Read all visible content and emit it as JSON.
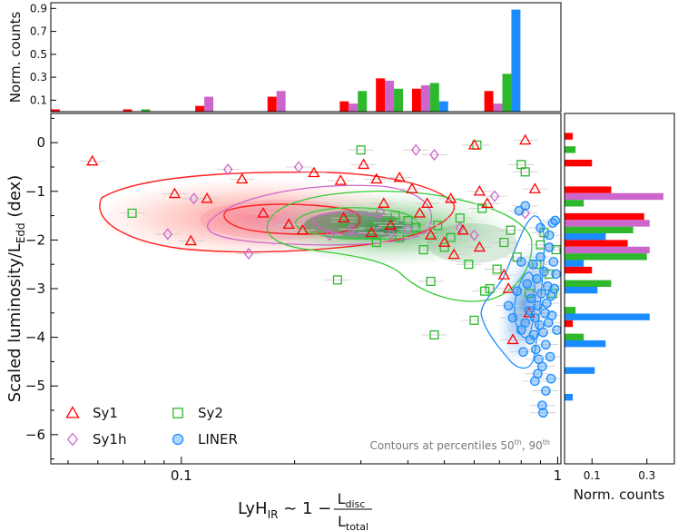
{
  "chart_data": {
    "type": "scatter",
    "xscale": "log",
    "xlim": [
      0.045,
      1.02
    ],
    "ylim": [
      -6.6,
      0.6
    ],
    "x_ticks": [
      0.1,
      1
    ],
    "x_tick_labels": [
      "0.1",
      "1"
    ],
    "y_ticks": [
      0,
      -1,
      -2,
      -3,
      -4,
      -5,
      -6
    ],
    "y_tick_labels": [
      "0",
      "−1",
      "−2",
      "−3",
      "−4",
      "−5",
      "−6"
    ],
    "xlabel": {
      "main": "LyH",
      "sub": "IR",
      "mid": " ~ 1 − ",
      "num_main": "L",
      "num_sub": "disc",
      "den_main": "L",
      "den_sub": "total"
    },
    "ylabel": {
      "main": "Scaled luminosity/L",
      "sub": "Edd",
      "tail": " (dex)"
    },
    "annotation": {
      "prefix": "Contours at percentiles 50",
      "sup1": "th",
      "mid": ", 90",
      "sup2": "th"
    },
    "colors": {
      "Sy1": "#ff0000",
      "Sy1h": "#cc66cc",
      "Sy2": "#2db82d",
      "LINER": "#1a8cff"
    },
    "series": [
      {
        "name": "Sy1",
        "marker": "triangle",
        "points": [
          [
            0.058,
            -0.38
          ],
          [
            0.096,
            -1.05
          ],
          [
            0.106,
            -2.02
          ],
          [
            0.117,
            -1.15
          ],
          [
            0.145,
            -0.75
          ],
          [
            0.165,
            -1.45
          ],
          [
            0.193,
            -1.68
          ],
          [
            0.225,
            -0.62
          ],
          [
            0.265,
            -0.78
          ],
          [
            0.305,
            -0.45
          ],
          [
            0.33,
            -0.75
          ],
          [
            0.345,
            -1.25
          ],
          [
            0.38,
            -0.72
          ],
          [
            0.41,
            -0.95
          ],
          [
            0.43,
            -1.45
          ],
          [
            0.45,
            -1.25
          ],
          [
            0.46,
            -1.9
          ],
          [
            0.5,
            -2.05
          ],
          [
            0.52,
            -1.15
          ],
          [
            0.53,
            -2.3
          ],
          [
            0.56,
            -1.8
          ],
          [
            0.6,
            -0.05
          ],
          [
            0.62,
            -1.0
          ],
          [
            0.65,
            -1.25
          ],
          [
            0.72,
            -2.72
          ],
          [
            0.74,
            -3.0
          ],
          [
            0.76,
            -4.05
          ],
          [
            0.82,
            0.05
          ],
          [
            0.84,
            -3.5
          ],
          [
            0.87,
            -0.95
          ],
          [
            0.62,
            -2.15
          ],
          [
            0.36,
            -1.7
          ],
          [
            0.32,
            -1.85
          ],
          [
            0.27,
            -1.55
          ],
          [
            0.21,
            -1.8
          ]
        ]
      },
      {
        "name": "Sy1h",
        "marker": "diamond",
        "points": [
          [
            0.092,
            -1.88
          ],
          [
            0.108,
            -1.15
          ],
          [
            0.133,
            -0.55
          ],
          [
            0.151,
            -2.28
          ],
          [
            0.205,
            -0.5
          ],
          [
            0.248,
            -1.9
          ],
          [
            0.283,
            -1.78
          ],
          [
            0.338,
            -1.42
          ],
          [
            0.36,
            -1.88
          ],
          [
            0.4,
            -1.78
          ],
          [
            0.42,
            -0.15
          ],
          [
            0.47,
            -0.25
          ],
          [
            0.6,
            -1.9
          ],
          [
            0.68,
            -1.1
          ],
          [
            0.82,
            -1.45
          ],
          [
            0.55,
            -1.75
          ]
        ]
      },
      {
        "name": "Sy2",
        "marker": "square",
        "points": [
          [
            0.074,
            -1.45
          ],
          [
            0.26,
            -2.82
          ],
          [
            0.27,
            -1.62
          ],
          [
            0.3,
            -0.15
          ],
          [
            0.32,
            -1.75
          ],
          [
            0.33,
            -2.05
          ],
          [
            0.35,
            -1.65
          ],
          [
            0.37,
            -1.5
          ],
          [
            0.38,
            -1.95
          ],
          [
            0.4,
            -1.6
          ],
          [
            0.42,
            -1.75
          ],
          [
            0.44,
            -2.2
          ],
          [
            0.46,
            -2.85
          ],
          [
            0.48,
            -1.7
          ],
          [
            0.5,
            -2.15
          ],
          [
            0.52,
            -1.95
          ],
          [
            0.55,
            -1.55
          ],
          [
            0.58,
            -2.5
          ],
          [
            0.6,
            -3.65
          ],
          [
            0.61,
            -0.05
          ],
          [
            0.63,
            -1.35
          ],
          [
            0.66,
            -3.0
          ],
          [
            0.69,
            -2.6
          ],
          [
            0.72,
            -2.05
          ],
          [
            0.75,
            -1.8
          ],
          [
            0.78,
            -2.35
          ],
          [
            0.8,
            -0.45
          ],
          [
            0.82,
            -0.6
          ],
          [
            0.84,
            -3.1
          ],
          [
            0.88,
            -2.5
          ],
          [
            0.9,
            -2.1
          ],
          [
            0.92,
            -1.85
          ],
          [
            0.95,
            -2.7
          ],
          [
            0.97,
            -3.1
          ],
          [
            0.99,
            -2.2
          ],
          [
            0.47,
            -3.95
          ],
          [
            0.64,
            -3.05
          ]
        ]
      },
      {
        "name": "LINER",
        "marker": "circle",
        "points": [
          [
            0.74,
            -3.35
          ],
          [
            0.76,
            -3.6
          ],
          [
            0.78,
            -3.05
          ],
          [
            0.8,
            -3.85
          ],
          [
            0.81,
            -4.3
          ],
          [
            0.82,
            -3.7
          ],
          [
            0.83,
            -2.9
          ],
          [
            0.84,
            -3.45
          ],
          [
            0.845,
            -4.05
          ],
          [
            0.85,
            -3.2
          ],
          [
            0.86,
            -2.5
          ],
          [
            0.865,
            -3.95
          ],
          [
            0.87,
            -3.6
          ],
          [
            0.875,
            -4.25
          ],
          [
            0.88,
            -2.8
          ],
          [
            0.885,
            -3.35
          ],
          [
            0.89,
            -4.45
          ],
          [
            0.895,
            -3.75
          ],
          [
            0.9,
            -2.35
          ],
          [
            0.905,
            -3.1
          ],
          [
            0.91,
            -4.6
          ],
          [
            0.915,
            -3.9
          ],
          [
            0.92,
            -2.65
          ],
          [
            0.925,
            -3.5
          ],
          [
            0.93,
            -4.15
          ],
          [
            0.935,
            -3.3
          ],
          [
            0.94,
            -2.95
          ],
          [
            0.945,
            -3.7
          ],
          [
            0.95,
            -2.15
          ],
          [
            0.955,
            -4.4
          ],
          [
            0.96,
            -3.15
          ],
          [
            0.965,
            -3.55
          ],
          [
            0.97,
            -1.65
          ],
          [
            0.975,
            -2.45
          ],
          [
            0.98,
            -3.0
          ],
          [
            0.985,
            -1.6
          ],
          [
            0.99,
            -2.7
          ],
          [
            0.995,
            -3.85
          ],
          [
            0.93,
            -5.1
          ],
          [
            0.91,
            -5.4
          ],
          [
            0.915,
            -5.55
          ],
          [
            0.885,
            -4.75
          ],
          [
            0.87,
            -4.9
          ],
          [
            0.8,
            -2.45
          ],
          [
            0.79,
            -1.4
          ],
          [
            0.82,
            -1.3
          ],
          [
            0.9,
            -1.75
          ],
          [
            0.95,
            -1.9
          ],
          [
            0.96,
            -4.85
          ]
        ]
      }
    ],
    "top_histogram": {
      "ylabel": "Norm. counts",
      "y_ticks": [
        0.1,
        0.3,
        0.5,
        0.7,
        0.9
      ],
      "y_tick_labels": [
        "0.1",
        "0.3",
        "0.5",
        "0.7",
        "0.9"
      ],
      "ylim": [
        0,
        0.95
      ],
      "bin_edges_log10": [
        -1.347,
        -1.251,
        -1.155,
        -1.059,
        -0.963,
        -0.867,
        -0.771,
        -0.675,
        -0.579,
        -0.483,
        -0.387,
        -0.291,
        -0.195,
        -0.099,
        -0.003
      ],
      "series": [
        {
          "name": "Sy1",
          "values": [
            0.02,
            0.0,
            0.02,
            0.0,
            0.05,
            0.0,
            0.13,
            0.0,
            0.09,
            0.29,
            0.2,
            0.0,
            0.18,
            0.0
          ]
        },
        {
          "name": "Sy1h",
          "values": [
            0.0,
            0.0,
            0.0,
            0.0,
            0.13,
            0.0,
            0.18,
            0.0,
            0.07,
            0.27,
            0.23,
            0.0,
            0.07,
            0.0
          ]
        },
        {
          "name": "Sy2",
          "values": [
            0.0,
            0.0,
            0.02,
            0.0,
            0.0,
            0.0,
            0.0,
            0.0,
            0.18,
            0.2,
            0.25,
            0.0,
            0.33,
            0.0
          ]
        },
        {
          "name": "LINER",
          "values": [
            0.0,
            0.0,
            0.0,
            0.0,
            0.0,
            0.0,
            0.0,
            0.0,
            0.0,
            0.0,
            0.09,
            0.0,
            0.89,
            0.0
          ]
        }
      ]
    },
    "right_histogram": {
      "xlabel": "Norm. counts",
      "x_ticks": [
        0.1,
        0.3
      ],
      "x_tick_labels": [
        "0.1",
        "0.3"
      ],
      "xlim": [
        0,
        0.4
      ],
      "bin_edges_y": [
        0.2,
        -0.35,
        -0.9,
        -1.45,
        -2.0,
        -2.55,
        -3.1,
        -3.65,
        -4.2,
        -4.75,
        -5.3
      ],
      "series": [
        {
          "name": "Sy1",
          "values": [
            0.03,
            0.1,
            0.17,
            0.29,
            0.23,
            0.1,
            0.0,
            0.03,
            0.0,
            0.0
          ]
        },
        {
          "name": "Sy1h",
          "values": [
            0.0,
            0.0,
            0.36,
            0.31,
            0.31,
            0.0,
            0.0,
            0.0,
            0.0,
            0.0
          ]
        },
        {
          "name": "Sy2",
          "values": [
            0.04,
            0.0,
            0.07,
            0.25,
            0.3,
            0.17,
            0.04,
            0.07,
            0.0,
            0.0
          ]
        },
        {
          "name": "LINER",
          "values": [
            0.0,
            0.0,
            0.0,
            0.15,
            0.07,
            0.12,
            0.31,
            0.15,
            0.11,
            0.03
          ]
        }
      ]
    },
    "legend": {
      "placement": "lower-left",
      "entries": [
        {
          "name": "Sy1",
          "marker": "triangle"
        },
        {
          "name": "Sy1h",
          "marker": "diamond"
        },
        {
          "name": "Sy2",
          "marker": "square"
        },
        {
          "name": "LINER",
          "marker": "circle"
        }
      ]
    }
  }
}
